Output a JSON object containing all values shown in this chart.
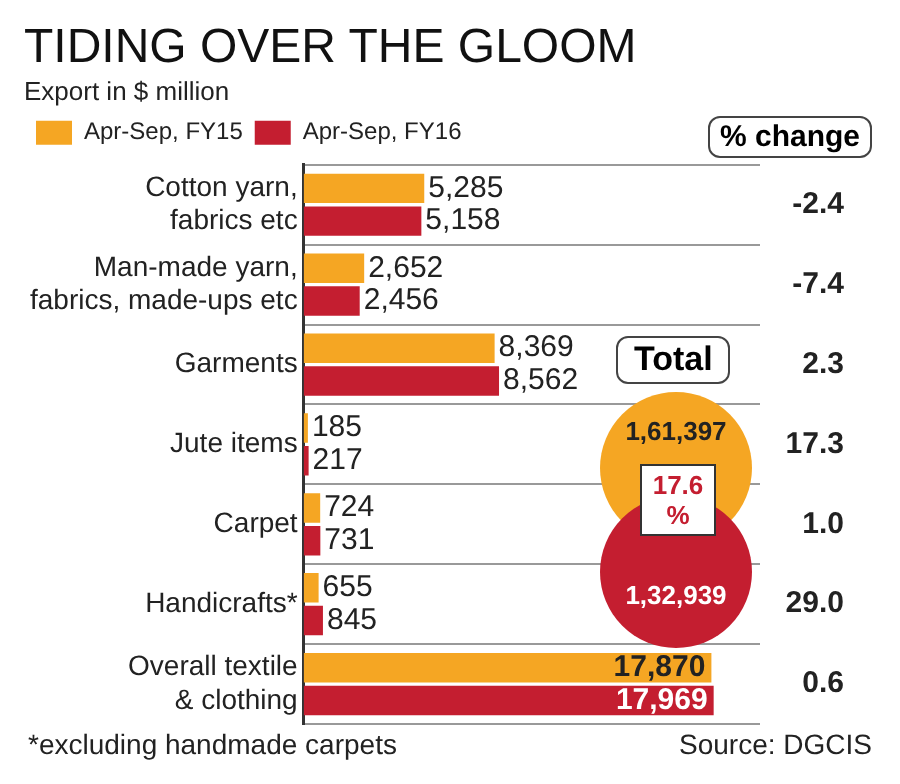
{
  "chart_data": {
    "type": "bar",
    "orientation": "horizontal",
    "title": "TIDING OVER THE GLOOM",
    "subtitle": "Export in $ million",
    "categories": [
      "Cotton yarn,\nfabrics etc",
      "Man-made yarn,\nfabrics, made-ups etc",
      "Garments",
      "Jute items",
      "Carpet",
      "Handicrafts*",
      "Overall textile\n& clothing"
    ],
    "series": [
      {
        "name": "Apr-Sep, FY15",
        "color": "#f5a623",
        "values": [
          5285,
          2652,
          8369,
          185,
          724,
          655,
          17870
        ],
        "value_labels": [
          "5,285",
          "2,652",
          "8,369",
          "185",
          "724",
          "655",
          "17,870"
        ]
      },
      {
        "name": "Apr-Sep, FY16",
        "color": "#c41e30",
        "values": [
          5158,
          2456,
          8562,
          217,
          731,
          845,
          17969
        ],
        "value_labels": [
          "5,158",
          "2,456",
          "8,562",
          "217",
          "731",
          "845",
          "17,969"
        ]
      }
    ],
    "grid": "y",
    "legend": "top",
    "tick_labels": "y",
    "annotations": [
      "% change",
      "-2.4",
      "-7.4",
      "2.3",
      "17.3",
      "1.0",
      "29.0",
      "0.6",
      "Total",
      "1,61,397",
      "17.6 %",
      "1,32,939",
      "*excluding handmade carpets",
      "Source: DGCIS"
    ]
  }
}
